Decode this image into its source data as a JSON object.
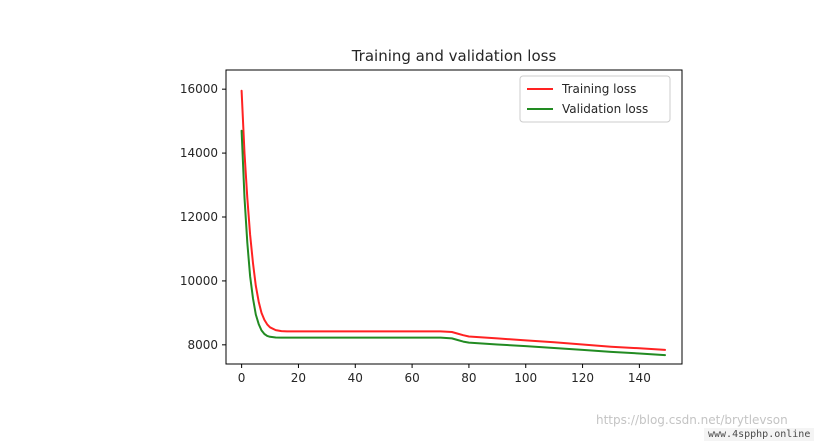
{
  "chart_data": {
    "type": "line",
    "title": "Training and validation loss",
    "xlabel": "",
    "ylabel": "",
    "xlim": [
      -5.5,
      155
    ],
    "ylim": [
      7400,
      16600
    ],
    "x_ticks": [
      0,
      20,
      40,
      60,
      80,
      100,
      120,
      140
    ],
    "y_ticks": [
      8000,
      10000,
      12000,
      14000,
      16000
    ],
    "grid": false,
    "legend_position": "top-right",
    "series": [
      {
        "name": "Training loss",
        "color": "#ff2222",
        "x": [
          0,
          1,
          2,
          3,
          4,
          5,
          6,
          7,
          8,
          9,
          10,
          12,
          14,
          16,
          20,
          30,
          40,
          50,
          60,
          70,
          74,
          76,
          78,
          80,
          90,
          100,
          110,
          120,
          130,
          140,
          149
        ],
        "y": [
          15950,
          14000,
          12600,
          11450,
          10550,
          9850,
          9350,
          9000,
          8780,
          8640,
          8550,
          8460,
          8430,
          8420,
          8420,
          8420,
          8420,
          8420,
          8420,
          8420,
          8400,
          8350,
          8300,
          8260,
          8200,
          8140,
          8080,
          8010,
          7940,
          7890,
          7840
        ]
      },
      {
        "name": "Validation loss",
        "color": "#228b22",
        "x": [
          0,
          1,
          2,
          3,
          4,
          5,
          6,
          7,
          8,
          9,
          10,
          12,
          14,
          16,
          20,
          30,
          40,
          50,
          60,
          70,
          74,
          76,
          78,
          80,
          90,
          100,
          110,
          120,
          130,
          140,
          149
        ],
        "y": [
          14700,
          12600,
          11200,
          10150,
          9450,
          8950,
          8650,
          8450,
          8340,
          8280,
          8250,
          8230,
          8225,
          8225,
          8225,
          8225,
          8225,
          8225,
          8225,
          8225,
          8200,
          8150,
          8100,
          8070,
          8010,
          7960,
          7900,
          7840,
          7780,
          7730,
          7680
        ]
      }
    ]
  },
  "watermark": {
    "blog_url": "https://blog.csdn.net/brytlevson",
    "site": "www.4spphp.online"
  }
}
